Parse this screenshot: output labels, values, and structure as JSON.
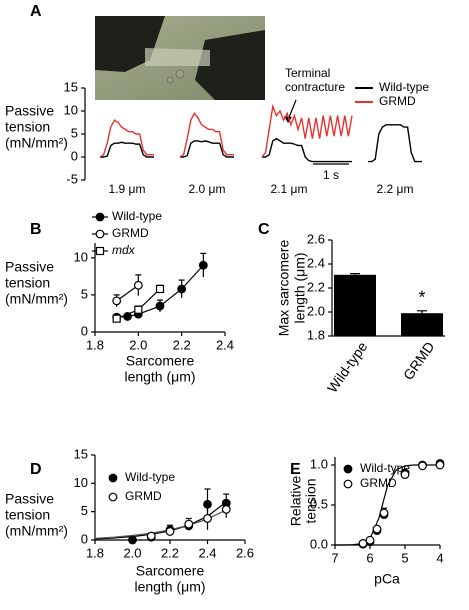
{
  "chart_data": [
    {
      "type": "trace",
      "title": "A",
      "ylabel": [
        "Passive",
        "tension",
        "(mN/mm²)"
      ],
      "ylim": [
        -5,
        15
      ],
      "yticks": [
        -5,
        0,
        5,
        10,
        15
      ],
      "series": [
        {
          "name": "Wild-type",
          "color": "#000000"
        },
        {
          "name": "GRMD",
          "color": "#e8312f"
        }
      ],
      "annotation": [
        "Terminal",
        "contracture"
      ],
      "scale_bar": {
        "value": 1,
        "label": "1 s"
      },
      "traces": [
        {
          "label": "1.9 μm",
          "x": [
            0,
            0.1,
            0.2,
            0.3,
            0.4,
            0.5,
            0.6,
            0.7,
            0.8,
            0.9,
            1,
            1.1,
            1.2,
            1.3,
            1.4,
            1.5
          ],
          "series": [
            {
              "values": [
                0,
                0,
                0.2,
                2.5,
                3,
                3,
                3.2,
                3,
                3,
                3,
                2.8,
                2.8,
                0.5,
                0,
                0,
                0
              ]
            },
            {
              "values": [
                0,
                0.5,
                3,
                6.5,
                8,
                7.5,
                6.5,
                6,
                5.5,
                5.5,
                5,
                5,
                1.5,
                0.5,
                0.5,
                0.5
              ]
            }
          ]
        },
        {
          "label": "2.0 μm",
          "x": [
            0,
            0.1,
            0.2,
            0.3,
            0.4,
            0.5,
            0.6,
            0.7,
            0.8,
            0.9,
            1,
            1.1,
            1.2,
            1.3,
            1.4,
            1.5
          ],
          "series": [
            {
              "values": [
                0,
                0,
                0.3,
                3,
                3.5,
                3.5,
                3.3,
                3.5,
                3.3,
                3,
                3,
                3,
                0.5,
                0,
                0,
                0
              ]
            },
            {
              "values": [
                0,
                0.5,
                4,
                8,
                9.5,
                8.5,
                7,
                6.5,
                6,
                6,
                5.5,
                5.5,
                1.5,
                0.5,
                0.5,
                0.5
              ]
            }
          ]
        },
        {
          "label": "2.1 μm",
          "x": [
            0,
            0.1,
            0.2,
            0.3,
            0.4,
            0.5,
            0.6,
            0.7,
            0.8,
            0.9,
            1,
            1.1,
            1.2,
            1.3,
            1.4,
            1.5,
            1.6,
            1.7,
            1.8,
            1.9,
            2,
            2.1,
            2.2,
            2.3,
            2.4,
            2.5
          ],
          "series": [
            {
              "values": [
                0,
                0,
                0.5,
                3.5,
                4,
                3.5,
                3,
                3,
                3,
                2.8,
                2.5,
                2.5,
                0,
                -0.8,
                -1,
                -1,
                -1,
                -1,
                -1,
                -1,
                -1,
                -1,
                -1,
                -1,
                -1,
                -1
              ]
            },
            {
              "values": [
                0,
                1,
                6,
                11,
                9,
                10,
                8,
                9.5,
                7,
                9,
                6,
                8.5,
                4,
                8.5,
                4,
                8.5,
                4,
                9,
                4.5,
                9,
                4.5,
                9,
                4.5,
                9,
                4.5,
                9
              ]
            }
          ]
        },
        {
          "label": "2.2 μm",
          "x": [
            0,
            0.1,
            0.2,
            0.3,
            0.4,
            0.5,
            0.6,
            0.7,
            0.8,
            0.9,
            1,
            1.1,
            1.2,
            1.3,
            1.4,
            1.5
          ],
          "series": [
            {
              "values": [
                -1,
                -1,
                -0.5,
                5,
                6.5,
                7,
                7,
                7,
                7,
                7,
                6.5,
                6.5,
                1,
                -1,
                -1,
                -1
              ]
            }
          ]
        }
      ]
    },
    {
      "type": "scatter",
      "title": "B",
      "ylabel": [
        "Passive",
        "tension",
        "(mN/mm²)"
      ],
      "xlabel": [
        "Sarcomere",
        "length (μm)"
      ],
      "xlim": [
        1.8,
        2.4
      ],
      "xticks": [
        1.8,
        {
          "value": 2,
          "label": "2.0"
        },
        2.2,
        2.4
      ],
      "ylim": [
        0,
        12
      ],
      "yticks": [
        0,
        5,
        10
      ],
      "connect": true,
      "series": [
        {
          "name": "Wild-type",
          "marker": "circle-filled",
          "x": [
            1.9,
            1.95,
            2.0,
            2.1,
            2.2,
            2.3
          ],
          "values": [
            2.0,
            2.1,
            2.4,
            3.5,
            5.8,
            9.0
          ],
          "errors": [
            0.3,
            0.3,
            0.4,
            0.8,
            1.2,
            1.6
          ]
        },
        {
          "name": "GRMD",
          "marker": "circle-open",
          "x": [
            1.9,
            2.0
          ],
          "values": [
            4.2,
            6.3
          ],
          "errors": [
            0.8,
            1.4
          ]
        },
        {
          "name": "mdx",
          "marker": "square-open",
          "font_style": "italic",
          "x": [
            1.9,
            2.0,
            2.1
          ],
          "values": [
            1.8,
            3.0,
            5.8
          ],
          "errors": [
            0.4,
            0.5,
            0.5
          ]
        }
      ]
    },
    {
      "type": "bar",
      "title": "C",
      "ylabel": [
        "Max sarcomere",
        "length (μm)"
      ],
      "categories": [
        "Wild-type",
        "GRMD"
      ],
      "values": [
        2.31,
        1.99
      ],
      "errors": [
        0.01,
        0.02
      ],
      "color": "#000000",
      "ylim": [
        1.8,
        2.6
      ],
      "yticks": [
        1.8,
        {
          "value": 2,
          "label": "2.0"
        },
        2.2,
        2.4,
        2.6
      ],
      "annotation": {
        "text": "*",
        "category": "GRMD"
      }
    },
    {
      "type": "scatter",
      "title": "D",
      "ylabel": [
        "Passive",
        "tension",
        "(mN/mm²)"
      ],
      "xlabel": [
        "Sarcomere",
        "length (μm)"
      ],
      "xlim": [
        1.8,
        2.6
      ],
      "xticks": [
        1.8,
        {
          "value": 2,
          "label": "2.0"
        },
        2.2,
        2.4,
        2.6
      ],
      "ylim": [
        0,
        15
      ],
      "yticks": [
        0,
        5,
        10,
        15
      ],
      "connect": false,
      "series": [
        {
          "name": "Wild-type",
          "marker": "circle-filled",
          "x": [
            2.0,
            2.1,
            2.2,
            2.3,
            2.4,
            2.5
          ],
          "values": [
            0,
            0.5,
            1.8,
            2.5,
            6.3,
            6.5
          ],
          "errors": [
            0.2,
            0.3,
            0.8,
            0.8,
            2.7,
            1.6
          ]
        },
        {
          "name": "GRMD",
          "marker": "circle-open",
          "x": [
            2.1,
            2.2,
            2.3,
            2.4,
            2.5
          ],
          "values": [
            0.7,
            1.5,
            2.8,
            3.8,
            5.4
          ],
          "errors": [
            0.3,
            0.6,
            1,
            2,
            1.5
          ]
        }
      ],
      "curves": [
        {
          "color": "#000000",
          "x": [
            1.8,
            1.9,
            2.0,
            2.1,
            2.2,
            2.3,
            2.4,
            2.5
          ],
          "values": [
            0.2,
            0.35,
            0.6,
            1.0,
            1.6,
            2.6,
            4.2,
            6.7
          ]
        },
        {
          "color": "#555555",
          "x": [
            1.8,
            1.9,
            2.0,
            2.1,
            2.2,
            2.3,
            2.4,
            2.5
          ],
          "values": [
            0.3,
            0.5,
            0.8,
            1.2,
            1.8,
            2.6,
            3.7,
            5.3
          ]
        }
      ]
    },
    {
      "type": "scatter",
      "title": "E",
      "ylabel": [
        "Relative",
        "tension"
      ],
      "xlabel": [
        "pCa"
      ],
      "xlim": [
        7,
        4
      ],
      "xticks": [
        7,
        6,
        5,
        4
      ],
      "ylim": [
        0,
        1.1
      ],
      "yticks": [
        {
          "value": 0,
          "label": "0.0"
        },
        0.5,
        {
          "value": 1,
          "label": "1.0"
        }
      ],
      "connect": false,
      "series": [
        {
          "name": "Wild-type",
          "marker": "circle-filled",
          "x": [
            6.2,
            6.0,
            5.8,
            5.6,
            5.0,
            4.5,
            4.0
          ],
          "values": [
            0.01,
            0.04,
            0.18,
            0.38,
            0.9,
            1.0,
            1.02
          ],
          "errors": [
            0.01,
            0.02,
            0.03,
            0.05,
            0.02,
            0.01,
            0.01
          ]
        },
        {
          "name": "GRMD",
          "marker": "circle-open",
          "x": [
            6.2,
            6.0,
            5.8,
            5.6,
            5.0,
            4.5,
            4.0
          ],
          "values": [
            0.02,
            0.06,
            0.2,
            0.4,
            0.88,
            0.99,
            1.0
          ],
          "errors": [
            0.01,
            0.02,
            0.03,
            0.06,
            0.02,
            0.01,
            0.01
          ]
        }
      ],
      "curves": [
        {
          "color": "#000000",
          "x": [
            7,
            6.75,
            6.5,
            6.25,
            6,
            5.75,
            5.5,
            5.25,
            5,
            4.75,
            4.5,
            4.25,
            4
          ],
          "values": [
            0,
            0,
            0.003,
            0.016,
            0.08,
            0.33,
            0.74,
            0.94,
            0.99,
            1,
            1,
            1,
            1
          ]
        }
      ]
    }
  ]
}
